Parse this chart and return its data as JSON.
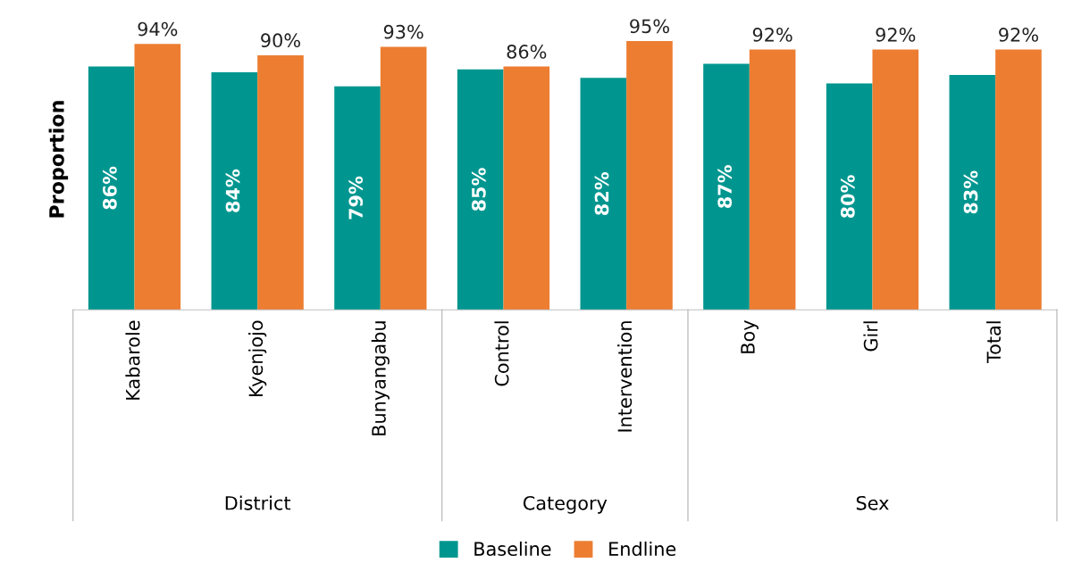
{
  "chart_data": {
    "type": "bar",
    "ylabel": "Proportion",
    "categories": [
      "Kabarole",
      "Kyenjojo",
      "Bunyangabu",
      "Control",
      "Intervention",
      "Boy",
      "Girl",
      "Total"
    ],
    "series": [
      {
        "name": "Baseline",
        "color": "#00968f",
        "values": [
          86,
          84,
          79,
          85,
          82,
          87,
          80,
          83
        ],
        "value_labels": [
          "86%",
          "84%",
          "79%",
          "85%",
          "82%",
          "87%",
          "80%",
          "83%"
        ]
      },
      {
        "name": "Endline",
        "color": "#ed7d31",
        "values": [
          94,
          90,
          93,
          86,
          95,
          92,
          92,
          92
        ],
        "value_labels": [
          "94%",
          "90%",
          "93%",
          "86%",
          "95%",
          "92%",
          "92%",
          "92%"
        ]
      }
    ],
    "annotations": [
      "District",
      "Category",
      "Sex"
    ],
    "legend": "bottom",
    "grid": false
  }
}
